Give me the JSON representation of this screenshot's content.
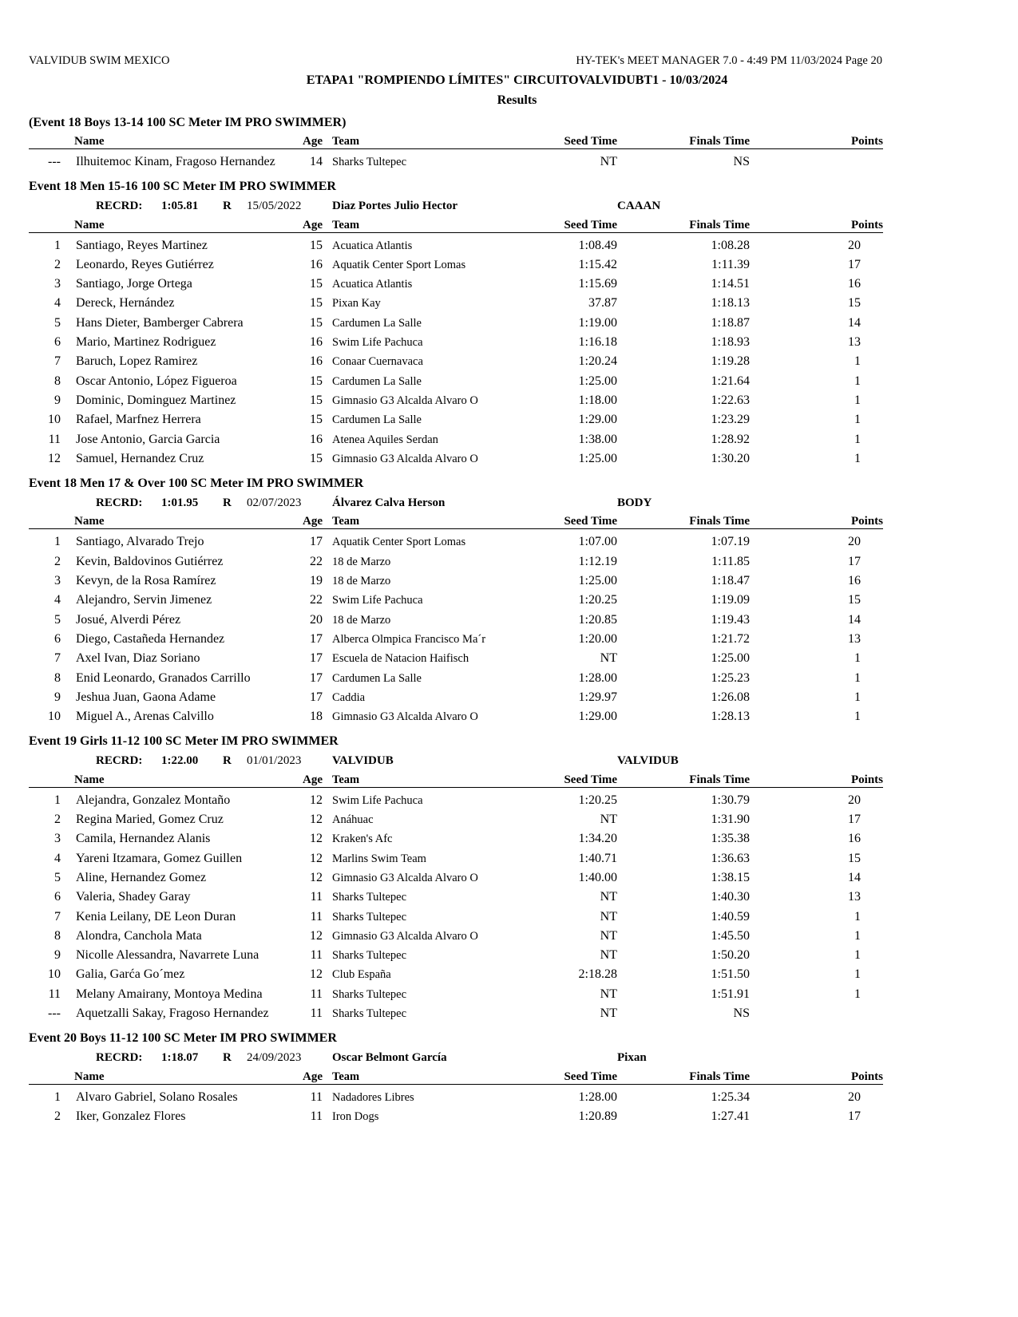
{
  "header": {
    "org": "VALVIDUB SWIM MEXICO",
    "software": "HY-TEK's MEET MANAGER 7.0 - 4:49 PM  11/03/2024  Page 20",
    "meet_title": "ETAPA1 \"ROMPIENDO LÍMITES\" CIRCUITOVALVIDUBT1 - 10/03/2024",
    "subtitle": "Results"
  },
  "columns": {
    "name": "Name",
    "age": "Age",
    "team": "Team",
    "seed": "Seed Time",
    "finals": "Finals Time",
    "points": "Points"
  },
  "events": [
    {
      "title": "(Event 18  Boys 13-14 100 SC Meter IM PRO SWIMMER)",
      "rows": [
        [
          "---",
          "Ilhuitemoc Kinam, Fragoso Hernandez",
          "14",
          "Sharks Tultepec",
          "NT",
          "NS",
          ""
        ]
      ]
    },
    {
      "title": "Event 18  Men 15-16 100 SC Meter IM PRO SWIMMER",
      "record": {
        "label": "RECRD:",
        "time": "1:05.81",
        "r": "R",
        "date": "15/05/2022",
        "holder": "Diaz Portes Julio Hector",
        "team": "CAAAN"
      },
      "rows": [
        [
          "1",
          "Santiago, Reyes Martinez",
          "15",
          "Acuatica Atlantis",
          "1:08.49",
          "1:08.28",
          "20"
        ],
        [
          "2",
          "Leonardo, Reyes Gutiérrez",
          "16",
          "Aquatik Center Sport Lomas",
          "1:15.42",
          "1:11.39",
          "17"
        ],
        [
          "3",
          "Santiago, Jorge Ortega",
          "15",
          "Acuatica Atlantis",
          "1:15.69",
          "1:14.51",
          "16"
        ],
        [
          "4",
          "Dereck, Hernández",
          "15",
          "Pixan Kay",
          "37.87",
          "1:18.13",
          "15"
        ],
        [
          "5",
          "Hans Dieter, Bamberger Cabrera",
          "15",
          "Cardumen La Salle",
          "1:19.00",
          "1:18.87",
          "14"
        ],
        [
          "6",
          "Mario, Martinez Rodriguez",
          "16",
          "Swim Life Pachuca",
          "1:16.18",
          "1:18.93",
          "13"
        ],
        [
          "7",
          "Baruch, Lopez Ramirez",
          "16",
          "Conaar Cuernavaca",
          "1:20.24",
          "1:19.28",
          "1"
        ],
        [
          "8",
          "Oscar Antonio, López Figueroa",
          "15",
          "Cardumen La Salle",
          "1:25.00",
          "1:21.64",
          "1"
        ],
        [
          "9",
          "Dominic, Dominguez Martinez",
          "15",
          "Gimnasio G3 Alcalda Alvaro O",
          "1:18.00",
          "1:22.63",
          "1"
        ],
        [
          "10",
          "Rafael, Marfnez Herrera",
          "15",
          "Cardumen La Salle",
          "1:29.00",
          "1:23.29",
          "1"
        ],
        [
          "11",
          "Jose Antonio, Garcia Garcia",
          "16",
          "Atenea Aquiles Serdan",
          "1:38.00",
          "1:28.92",
          "1"
        ],
        [
          "12",
          "Samuel, Hernandez Cruz",
          "15",
          "Gimnasio G3 Alcalda Alvaro O",
          "1:25.00",
          "1:30.20",
          "1"
        ]
      ]
    },
    {
      "title": "Event 18  Men 17 & Over 100 SC Meter IM PRO SWIMMER",
      "record": {
        "label": "RECRD:",
        "time": "1:01.95",
        "r": "R",
        "date": "02/07/2023",
        "holder": "Álvarez Calva Herson",
        "team": "BODY"
      },
      "rows": [
        [
          "1",
          "Santiago, Alvarado Trejo",
          "17",
          "Aquatik Center Sport Lomas",
          "1:07.00",
          "1:07.19",
          "20"
        ],
        [
          "2",
          "Kevin, Baldovinos Gutiérrez",
          "22",
          "18 de Marzo",
          "1:12.19",
          "1:11.85",
          "17"
        ],
        [
          "3",
          "Kevyn, de la Rosa Ramírez",
          "19",
          "18 de Marzo",
          "1:25.00",
          "1:18.47",
          "16"
        ],
        [
          "4",
          "Alejandro, Servin Jimenez",
          "22",
          "Swim Life Pachuca",
          "1:20.25",
          "1:19.09",
          "15"
        ],
        [
          "5",
          "Josué, Alverdi Pérez",
          "20",
          "18 de Marzo",
          "1:20.85",
          "1:19.43",
          "14"
        ],
        [
          "6",
          "Diego, Castañeda Hernandez",
          "17",
          "Alberca Olmpica Francisco Ma´r",
          "1:20.00",
          "1:21.72",
          "13"
        ],
        [
          "7",
          "Axel Ivan, Diaz Soriano",
          "17",
          "Escuela de Natacion Haifisch",
          "NT",
          "1:25.00",
          "1"
        ],
        [
          "8",
          "Enid Leonardo, Granados Carrillo",
          "17",
          "Cardumen La Salle",
          "1:28.00",
          "1:25.23",
          "1"
        ],
        [
          "9",
          "Jeshua Juan, Gaona Adame",
          "17",
          "Caddia",
          "1:29.97",
          "1:26.08",
          "1"
        ],
        [
          "10",
          "Miguel A., Arenas Calvillo",
          "18",
          "Gimnasio G3 Alcalda Alvaro O",
          "1:29.00",
          "1:28.13",
          "1"
        ]
      ]
    },
    {
      "title": "Event 19  Girls 11-12 100 SC Meter IM PRO SWIMMER",
      "record": {
        "label": "RECRD:",
        "time": "1:22.00",
        "r": "R",
        "date": "01/01/2023",
        "holder": "VALVIDUB",
        "team": "VALVIDUB"
      },
      "rows": [
        [
          "1",
          "Alejandra, Gonzalez Montaño",
          "12",
          "Swim Life Pachuca",
          "1:20.25",
          "1:30.79",
          "20"
        ],
        [
          "2",
          "Regina Maried, Gomez Cruz",
          "12",
          "Anáhuac",
          "NT",
          "1:31.90",
          "17"
        ],
        [
          "3",
          "Camila, Hernandez Alanis",
          "12",
          "Kraken's Afc",
          "1:34.20",
          "1:35.38",
          "16"
        ],
        [
          "4",
          "Yareni Itzamara, Gomez Guillen",
          "12",
          "Marlins Swim Team",
          "1:40.71",
          "1:36.63",
          "15"
        ],
        [
          "5",
          "Aline, Hernandez Gomez",
          "12",
          "Gimnasio G3 Alcalda Alvaro O",
          "1:40.00",
          "1:38.15",
          "14"
        ],
        [
          "6",
          "Valeria, Shadey Garay",
          "11",
          "Sharks Tultepec",
          "NT",
          "1:40.30",
          "13"
        ],
        [
          "7",
          "Kenia Leilany, DE Leon Duran",
          "11",
          "Sharks Tultepec",
          "NT",
          "1:40.59",
          "1"
        ],
        [
          "8",
          "Alondra, Canchola Mata",
          "12",
          "Gimnasio G3 Alcalda Alvaro O",
          "NT",
          "1:45.50",
          "1"
        ],
        [
          "9",
          "Nicolle Alessandra, Navarrete Luna",
          "11",
          "Sharks Tultepec",
          "NT",
          "1:50.20",
          "1"
        ],
        [
          "10",
          "Galia, Garća Go´mez",
          "12",
          "Club España",
          "2:18.28",
          "1:51.50",
          "1"
        ],
        [
          "11",
          "Melany Amairany, Montoya Medina",
          "11",
          "Sharks Tultepec",
          "NT",
          "1:51.91",
          "1"
        ],
        [
          "---",
          "Aquetzalli Sakay, Fragoso Hernandez",
          "11",
          "Sharks Tultepec",
          "NT",
          "NS",
          ""
        ]
      ]
    },
    {
      "title": "Event 20  Boys 11-12 100 SC Meter IM PRO SWIMMER",
      "record": {
        "label": "RECRD:",
        "time": "1:18.07",
        "r": "R",
        "date": "24/09/2023",
        "holder": "Oscar Belmont García",
        "team": "Pixan"
      },
      "rows": [
        [
          "1",
          "Alvaro Gabriel, Solano Rosales",
          "11",
          "Nadadores Libres",
          "1:28.00",
          "1:25.34",
          "20"
        ],
        [
          "2",
          "Iker, Gonzalez Flores",
          "11",
          "Iron Dogs",
          "1:20.89",
          "1:27.41",
          "17"
        ]
      ]
    }
  ]
}
